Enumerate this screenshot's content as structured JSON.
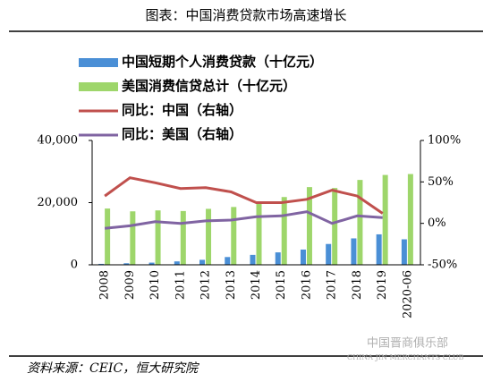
{
  "chart_data": {
    "type": "bar",
    "title": "图表：中国消费贷款市场高速增长",
    "source": "资料来源：CEIC，恒大研究院",
    "watermark": "中国晋商俱乐部",
    "watermark_en": "CHINA JIN MERCHANTS CLUB",
    "categories": [
      "2008",
      "2009",
      "2010",
      "2011",
      "2012",
      "2013",
      "2014",
      "2015",
      "2016",
      "2017",
      "2018",
      "2019",
      "2020-06"
    ],
    "series": [
      {
        "name": "中国短期个人消费贷款（十亿元）",
        "type": "bar",
        "color": "#4a8fd6",
        "values": [
          300,
          500,
          700,
          1100,
          1600,
          2500,
          3200,
          4000,
          4900,
          6700,
          8500,
          9800,
          8200
        ]
      },
      {
        "name": "美国消费信贷总计（十亿元）",
        "type": "bar",
        "color": "#9ed66b",
        "values": [
          18100,
          17200,
          17500,
          17300,
          18000,
          18600,
          20000,
          21800,
          25000,
          24700,
          27300,
          28900,
          29200
        ]
      },
      {
        "name": "同比：中国（右轴）",
        "type": "line",
        "axis": "y2",
        "color": "#c0504d",
        "values": [
          33,
          55,
          49,
          42,
          43,
          38,
          25,
          25,
          29,
          40,
          33,
          12,
          null
        ]
      },
      {
        "name": "同比：美国（右轴）",
        "type": "line",
        "axis": "y2",
        "color": "#8064a2",
        "values": [
          -6,
          -3,
          2,
          0,
          3,
          4,
          8,
          9,
          14,
          0,
          9,
          7,
          null
        ]
      }
    ],
    "ylim": [
      0,
      40000
    ],
    "yticks": [
      0,
      {
        "value": 20000,
        "label": "20,000"
      },
      {
        "value": 40000,
        "label": "40,000"
      }
    ],
    "y2lim": [
      -50,
      100
    ],
    "y2ticks": [
      {
        "value": -50,
        "label": "-50%"
      },
      {
        "value": 0,
        "label": "0%"
      },
      {
        "value": 50,
        "label": "50%"
      },
      {
        "value": 100,
        "label": "100%"
      }
    ]
  }
}
